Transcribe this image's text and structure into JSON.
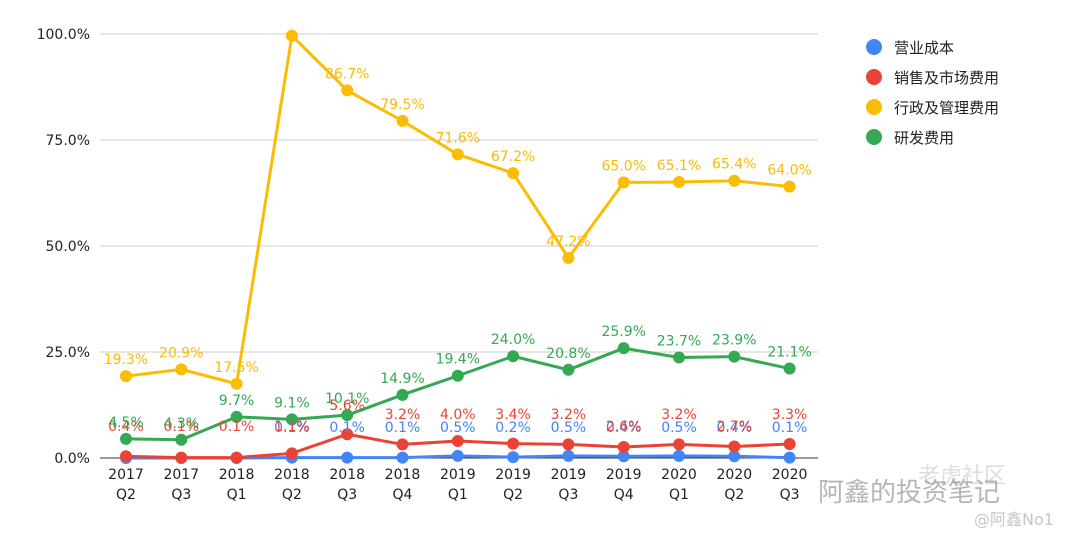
{
  "chart_data": {
    "type": "line",
    "categories": [
      [
        "2017",
        "Q2"
      ],
      [
        "2017",
        "Q3"
      ],
      [
        "2018",
        "Q1"
      ],
      [
        "2018",
        "Q2"
      ],
      [
        "2018",
        "Q3"
      ],
      [
        "2018",
        "Q4"
      ],
      [
        "2019",
        "Q1"
      ],
      [
        "2019",
        "Q2"
      ],
      [
        "2019",
        "Q3"
      ],
      [
        "2019",
        "Q4"
      ],
      [
        "2020",
        "Q1"
      ],
      [
        "2020",
        "Q2"
      ],
      [
        "2020",
        "Q3"
      ]
    ],
    "ylim": [
      0,
      100
    ],
    "yticks": [
      "0.0%",
      "25.0%",
      "50.0%",
      "75.0%",
      "100.0%"
    ],
    "grid": true,
    "legend_position": "right",
    "series": [
      {
        "name": "营业成本",
        "color": "#4285F4",
        "values": [
          0,
          0,
          0,
          0.1,
          0.1,
          0.1,
          0.5,
          0.2,
          0.5,
          0.4,
          0.5,
          0.4,
          0.1
        ],
        "labels": [
          "",
          "",
          "",
          "0.1%",
          "0.1%",
          "0.1%",
          "0.5%",
          "0.2%",
          "0.5%",
          "0.4%",
          "0.5%",
          "0.4%",
          "0.1%"
        ]
      },
      {
        "name": "销售及市场费用",
        "color": "#EA4335",
        "values": [
          0.4,
          0.1,
          0.1,
          1.1,
          5.6,
          3.2,
          4.0,
          3.4,
          3.2,
          2.6,
          3.2,
          2.7,
          3.3
        ],
        "labels": [
          "0.4%",
          "0.1%",
          "0.1%",
          "1.1%",
          "5.6%",
          "3.2%",
          "4.0%",
          "3.4%",
          "3.2%",
          "2.6%",
          "3.2%",
          "2.7%",
          "3.3%"
        ]
      },
      {
        "name": "行政及管理费用",
        "color": "#FBBC04",
        "values": [
          19.3,
          20.9,
          17.5,
          99.6,
          86.7,
          79.5,
          71.6,
          67.2,
          47.2,
          65.0,
          65.1,
          65.4,
          64.0
        ],
        "labels": [
          "19.3%",
          "20.9%",
          "17.5%",
          "",
          "86.7%",
          "79.5%",
          "71.6%",
          "67.2%",
          "47.2%",
          "65.0%",
          "65.1%",
          "65.4%",
          "64.0%"
        ]
      },
      {
        "name": "研发费用",
        "color": "#34A853",
        "values": [
          4.5,
          4.3,
          9.7,
          9.1,
          10.1,
          14.9,
          19.4,
          24.0,
          20.8,
          25.9,
          23.7,
          23.9,
          21.1
        ],
        "labels": [
          "4.5%",
          "4.3%",
          "9.7%",
          "9.1%",
          "10.1%",
          "14.9%",
          "19.4%",
          "24.0%",
          "20.8%",
          "25.9%",
          "23.7%",
          "23.9%",
          "21.1%"
        ]
      }
    ]
  },
  "watermark": {
    "wechat": "阿鑫的投资笔记",
    "community": "老虎社区",
    "handle": "@阿鑫No1"
  }
}
